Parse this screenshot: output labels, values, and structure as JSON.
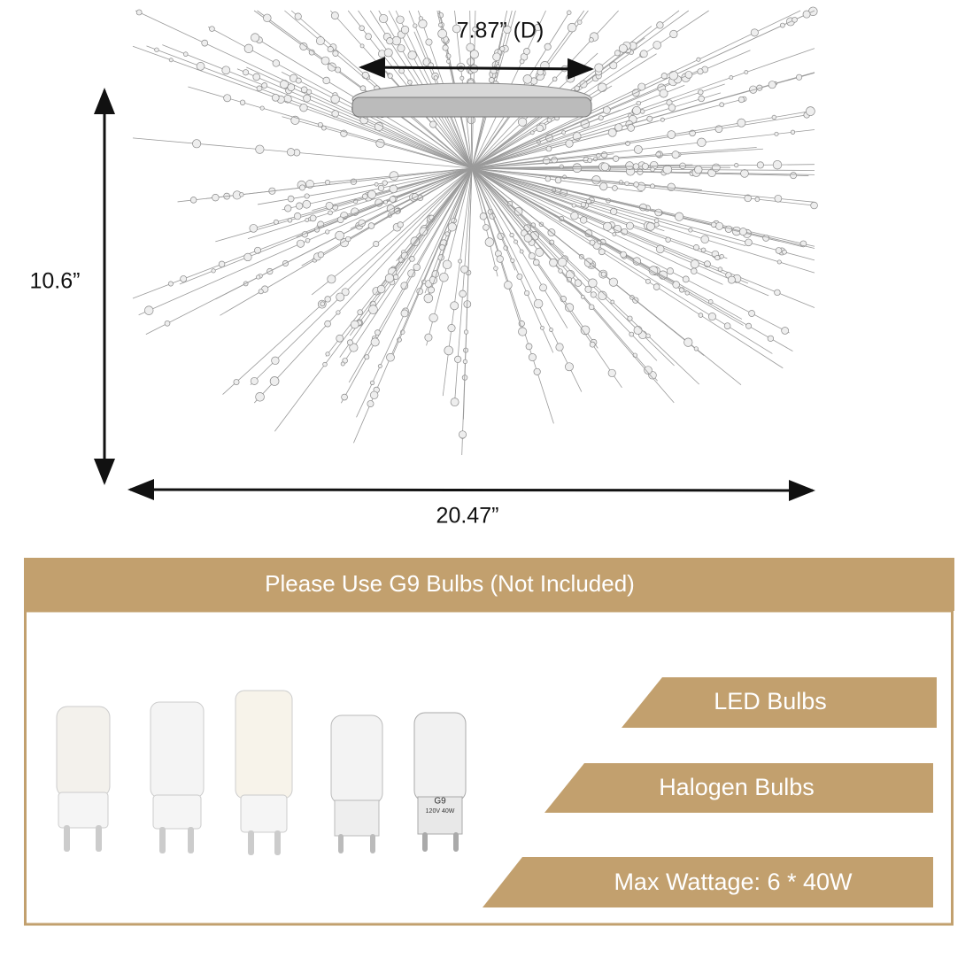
{
  "dimensions": {
    "diameter": "7.87” (D)",
    "height": "10.6”",
    "width": "20.47”"
  },
  "banner": {
    "title": "Please Use G9 Bulbs (Not Included)"
  },
  "tags": [
    "LED Bulbs",
    "Halogen Bulbs",
    "Max Wattage: 6 * 40W"
  ],
  "halogen_bulb_print": {
    "type": "G9",
    "rating": "120V 40W"
  }
}
